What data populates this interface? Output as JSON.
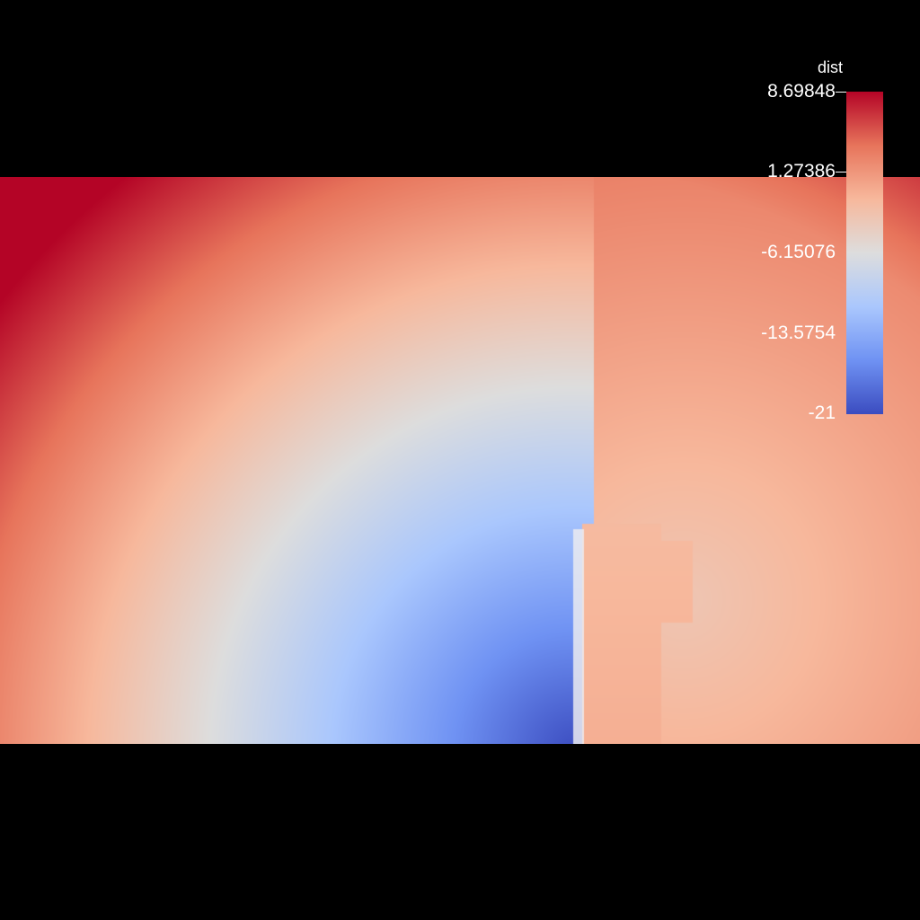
{
  "visualization": {
    "background": "#000000",
    "colormap": {
      "name": "coolwarm",
      "stops": [
        "#3b4cc0",
        "#6f92f3",
        "#aac7fd",
        "#dddddd",
        "#f7b89c",
        "#e7745b",
        "#b40426"
      ]
    }
  },
  "legend": {
    "title": "dist",
    "max": 8.69848,
    "min": -21,
    "ticks": [
      {
        "label": "8.69848"
      },
      {
        "label": "1.27386"
      },
      {
        "label": "-6.15076"
      },
      {
        "label": "-13.5754"
      },
      {
        "label": "-21"
      }
    ]
  }
}
